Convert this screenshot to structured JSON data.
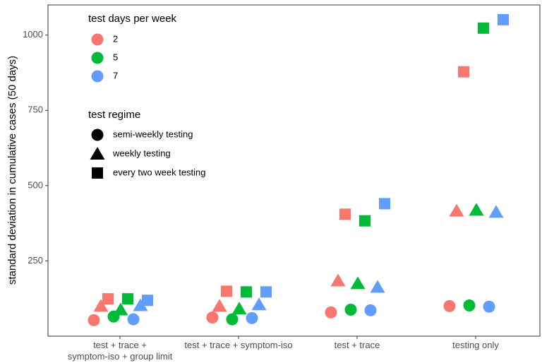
{
  "chart_data": {
    "type": "scatter",
    "y_label": "standard deviation in cumulative cases (50 days)",
    "categories": [
      "test + trace +\nsymptom-iso + group limit",
      "test + trace + symptom-iso",
      "test + trace",
      "testing only"
    ],
    "ylim": [
      0,
      1100
    ],
    "yticks": [
      250,
      500,
      750,
      1000
    ],
    "grid": false,
    "legend_color": {
      "title": "test days per week",
      "labels": [
        "2",
        "5",
        "7"
      ],
      "colors": [
        "#F8766D",
        "#00BA38",
        "#619CFF"
      ]
    },
    "legend_shape": {
      "title": "test regime",
      "labels": [
        "semi-weekly testing",
        "weekly testing",
        "every two week testing"
      ],
      "shapes": [
        "circle",
        "triangle",
        "square"
      ]
    },
    "series": [
      {
        "color": "#F8766D",
        "shape": "circle",
        "values": [
          53,
          62,
          79,
          100
        ]
      },
      {
        "color": "#00BA38",
        "shape": "circle",
        "values": [
          65,
          56,
          88,
          102
        ]
      },
      {
        "color": "#619CFF",
        "shape": "circle",
        "values": [
          56,
          60,
          86,
          98
        ]
      },
      {
        "color": "#F8766D",
        "shape": "triangle",
        "values": [
          100,
          100,
          184,
          416
        ]
      },
      {
        "color": "#00BA38",
        "shape": "triangle",
        "values": [
          88,
          91,
          175,
          419
        ]
      },
      {
        "color": "#619CFF",
        "shape": "triangle",
        "values": [
          102,
          105,
          163,
          412
        ]
      },
      {
        "color": "#F8766D",
        "shape": "square",
        "values": [
          124,
          149,
          405,
          878
        ]
      },
      {
        "color": "#00BA38",
        "shape": "square",
        "values": [
          124,
          147,
          383,
          1023
        ]
      },
      {
        "color": "#619CFF",
        "shape": "square",
        "values": [
          119,
          147,
          440,
          1051
        ]
      }
    ]
  }
}
